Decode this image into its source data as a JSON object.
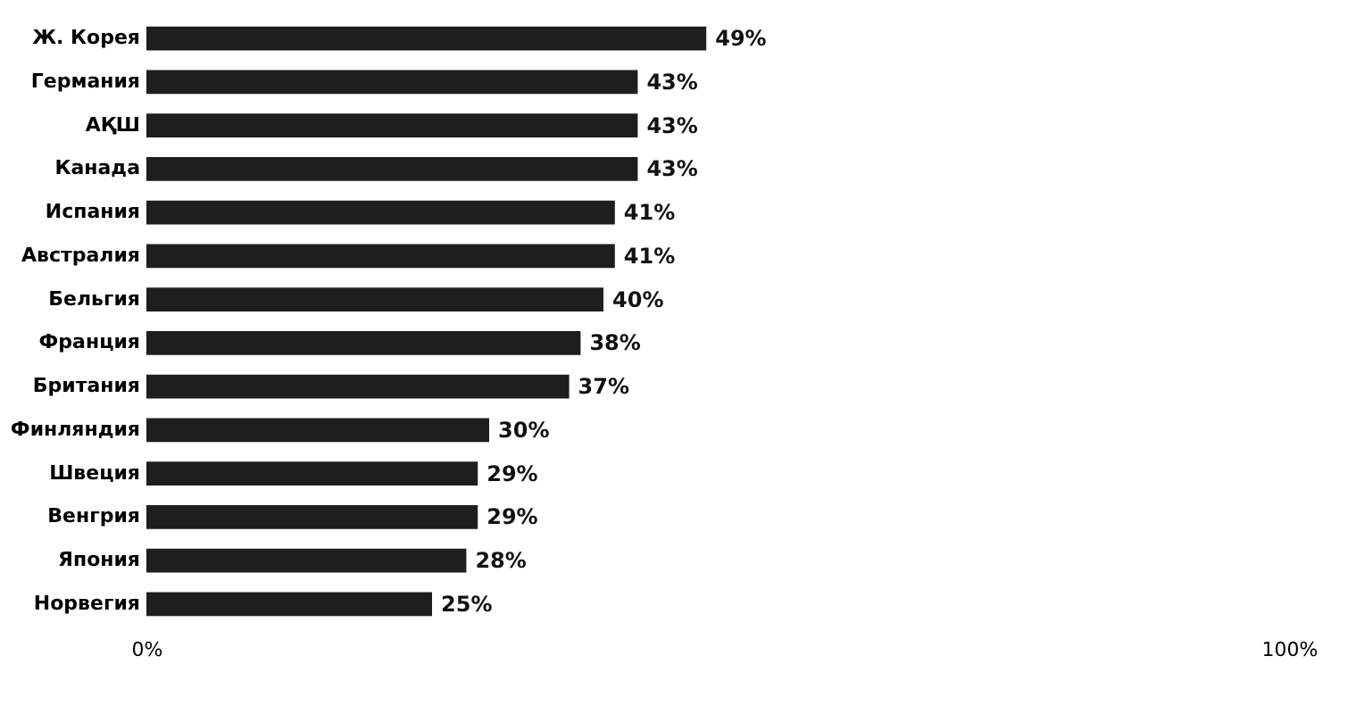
{
  "chart_data": {
    "type": "bar",
    "orientation": "horizontal",
    "categories": [
      "Ж. Корея",
      "Германия",
      "АҚШ",
      "Канада",
      "Испания",
      "Австралия",
      "Бельгия",
      "Франция",
      "Британия",
      "Финляндия",
      "Швеция",
      "Венгрия",
      "Япония",
      "Норвегия"
    ],
    "values": [
      49,
      43,
      43,
      43,
      41,
      41,
      40,
      38,
      37,
      30,
      29,
      29,
      28,
      25
    ],
    "value_labels": [
      "49%",
      "43%",
      "43%",
      "43%",
      "41%",
      "41%",
      "40%",
      "38%",
      "37%",
      "30%",
      "29%",
      "29%",
      "28%",
      "25%"
    ],
    "color": "#1e1e1e",
    "xlim": [
      0,
      100
    ],
    "xticks": [
      {
        "value": 0,
        "label": "0%"
      },
      {
        "value": 100,
        "label": "100%"
      }
    ]
  }
}
